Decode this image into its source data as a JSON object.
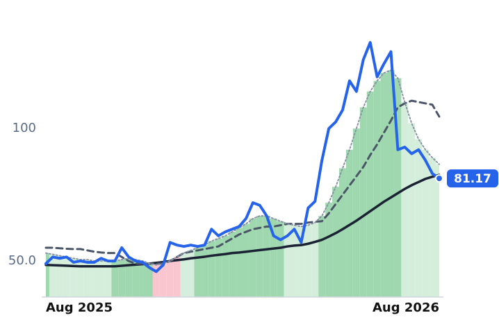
{
  "chart_data": {
    "type": "line",
    "categories": [
      "Aug 2025",
      null,
      null,
      null,
      null,
      null,
      null,
      null,
      null,
      null,
      null,
      null,
      null,
      null,
      null,
      null,
      null,
      null,
      null,
      null,
      null,
      null,
      null,
      null,
      null,
      null,
      null,
      null,
      null,
      null,
      null,
      null,
      null,
      null,
      null,
      null,
      null,
      null,
      null,
      null,
      null,
      null,
      null,
      null,
      null,
      null,
      null,
      null,
      null,
      null,
      null,
      null,
      null,
      null,
      null,
      null,
      null,
      "Aug 2026"
    ],
    "series": [
      {
        "color": "#2563eb",
        "style": "solid",
        "width": 4,
        "values": [
          49,
          51.5,
          51,
          51.5,
          49.5,
          50,
          49.5,
          49.5,
          51,
          50,
          50,
          55,
          51.5,
          50,
          49.5,
          47.5,
          46,
          48.5,
          57,
          56,
          55.5,
          56,
          55.5,
          56,
          62,
          59.5,
          61,
          62,
          63,
          66,
          72,
          71,
          67,
          59.5,
          58,
          59.5,
          62,
          57,
          70,
          72.5,
          88,
          100,
          102.5,
          107,
          118,
          114,
          126,
          132.5,
          119.5,
          124.5,
          129,
          92,
          93,
          90.5,
          92,
          88,
          83,
          81.17
        ]
      },
      {
        "color": "#8a93a6",
        "style": "dotted",
        "width": 2,
        "values": [
          53,
          52.5,
          52,
          51.5,
          51,
          50.5,
          50.5,
          50,
          50,
          50,
          50,
          50.5,
          51,
          50.5,
          50,
          49,
          48.5,
          49,
          50,
          51.5,
          53,
          54,
          55,
          56,
          57.5,
          58.5,
          59.5,
          61,
          62.5,
          64,
          66,
          67,
          67,
          66,
          65,
          64,
          63.5,
          63,
          63.5,
          64.5,
          67,
          72,
          78,
          85,
          92,
          100,
          108,
          114,
          118,
          121,
          122,
          119,
          110,
          102,
          96,
          92,
          89,
          86.5
        ]
      },
      {
        "color": "#4a5568",
        "style": "dashed",
        "width": 3,
        "values": [
          55,
          55,
          54.8,
          54.6,
          54.5,
          54.5,
          54,
          53.5,
          53.2,
          53,
          53,
          51.5,
          50,
          49,
          49,
          49,
          49,
          49,
          50,
          51.5,
          53,
          53.5,
          54,
          54.5,
          55,
          55.5,
          57,
          58.5,
          60,
          61,
          62,
          62.5,
          63,
          63,
          63.5,
          64,
          64,
          64,
          64.5,
          64.8,
          65,
          68,
          71.5,
          75,
          78.5,
          82,
          85.5,
          90,
          94,
          98.5,
          103,
          108,
          109.5,
          110.5,
          110,
          109.5,
          109,
          104.5
        ]
      },
      {
        "color": "#1a2233",
        "style": "solid",
        "width": 3.5,
        "values": [
          48.5,
          48.4,
          48.3,
          48.2,
          48.1,
          48,
          48,
          48,
          48,
          48,
          48,
          48.2,
          48.4,
          48.6,
          48.8,
          49,
          49.3,
          49.6,
          50,
          50.3,
          50.6,
          51,
          51.3,
          51.6,
          52,
          52.3,
          52.6,
          53,
          53.2,
          53.5,
          53.8,
          54.1,
          54.4,
          54.7,
          55,
          55.5,
          55.8,
          56,
          56.5,
          57.2,
          58,
          59.2,
          60.5,
          62,
          63.6,
          65.2,
          67,
          68.8,
          70.6,
          72.4,
          74,
          75.6,
          77.2,
          78.6,
          79.8,
          81,
          81.8,
          82.5
        ]
      }
    ],
    "zones": [
      "dark",
      "light",
      "light",
      "light",
      "light",
      "light",
      "light",
      "light",
      "light",
      "light",
      "dark",
      "dark",
      "dark",
      "dark",
      "dark",
      "dark",
      "red",
      "red",
      "red",
      "red",
      "light",
      "light",
      "dark",
      "dark",
      "dark",
      "dark",
      "dark",
      "dark",
      "dark",
      "dark",
      "dark",
      "dark",
      "dark",
      "dark",
      "dark",
      "light",
      "light",
      "light",
      "light",
      "light",
      "dark",
      "dark",
      "dark",
      "dark",
      "dark",
      "dark",
      "dark",
      "dark",
      "dark",
      "dark",
      "dark",
      "dark",
      "light",
      "light",
      "light",
      "light",
      "light",
      "light"
    ],
    "zone_colors": {
      "dark": "#9fd8ae",
      "light": "#d4eedb",
      "red": "#f9c5cf"
    },
    "ylim": [
      36,
      148
    ],
    "yticks": [
      {
        "value": 50,
        "label": "50.0"
      },
      100
    ],
    "grid": false
  }
}
